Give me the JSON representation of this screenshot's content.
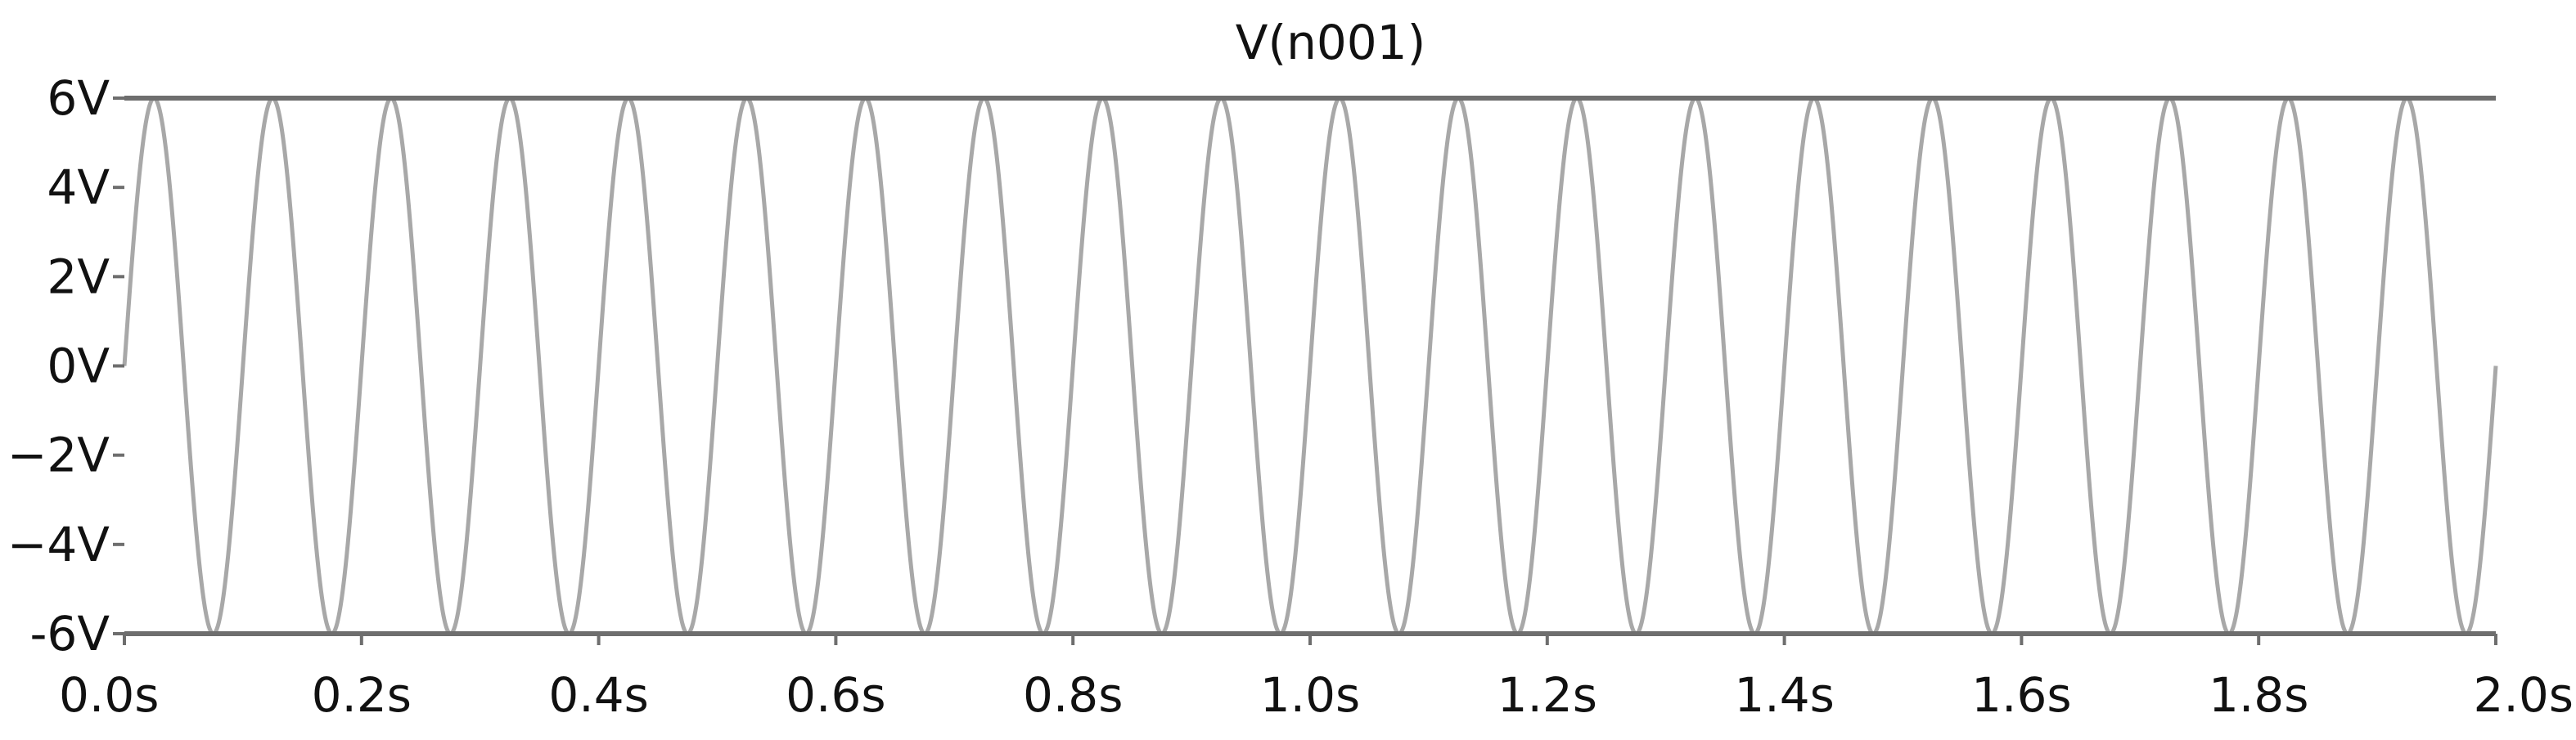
{
  "chart_data": {
    "type": "line",
    "title": "V(n001)",
    "xlabel": "",
    "ylabel": "",
    "xlim": [
      0.0,
      2.0
    ],
    "ylim": [
      -6,
      6
    ],
    "x_ticks": [
      {
        "value": 0.0,
        "label": "0.0s"
      },
      {
        "value": 0.2,
        "label": "0.2s"
      },
      {
        "value": 0.4,
        "label": "0.4s"
      },
      {
        "value": 0.6,
        "label": "0.6s"
      },
      {
        "value": 0.8,
        "label": "0.8s"
      },
      {
        "value": 1.0,
        "label": "1.0s"
      },
      {
        "value": 1.2,
        "label": "1.2s"
      },
      {
        "value": 1.4,
        "label": "1.4s"
      },
      {
        "value": 1.6,
        "label": "1.6s"
      },
      {
        "value": 1.8,
        "label": "1.8s"
      },
      {
        "value": 2.0,
        "label": "2.0s"
      }
    ],
    "y_ticks": [
      {
        "value": 6,
        "label": "6V"
      },
      {
        "value": 4,
        "label": "4V"
      },
      {
        "value": 2,
        "label": "2V"
      },
      {
        "value": 0,
        "label": "0V"
      },
      {
        "value": -2,
        "label": "−2V"
      },
      {
        "value": -4,
        "label": "−4V"
      },
      {
        "value": -6,
        "label": "-6V"
      }
    ],
    "grid": false,
    "series": [
      {
        "function": "sine",
        "amplitude": 6,
        "frequency_hz": 10,
        "phase": 0,
        "x_start": 0.0,
        "x_end": 2.0
      }
    ],
    "colors": {
      "trace": "#a8a8a8",
      "axis": "#6e6e6e",
      "text": "#111111"
    }
  }
}
